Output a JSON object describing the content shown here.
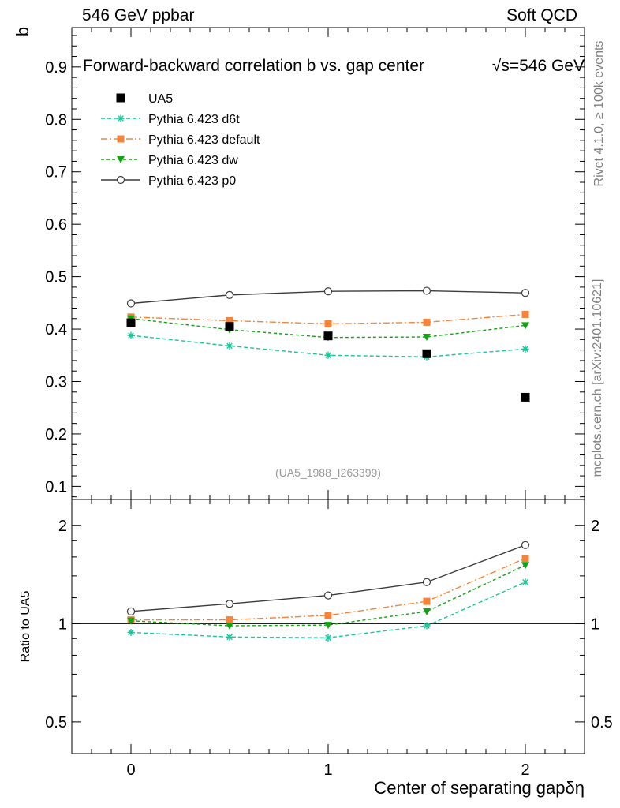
{
  "header": {
    "left": "546 GeV ppbar",
    "right": "Soft QCD"
  },
  "side_labels": {
    "rivet": "Rivet 4.1.0, ≥ 100k events",
    "mcplots": "mcplots.cern.ch [arXiv:2401.10621]"
  },
  "chart_data": {
    "type": "line",
    "title": "Forward-backward correlation b  vs. gap center",
    "energy_label": "√s=546 GeV",
    "watermark": "(UA5_1988_I263399)",
    "xlabel": "Center of separating gapδη",
    "ylabel": "b",
    "ratio_ylabel": "Ratio to UA5",
    "xlim": [
      -0.3,
      2.3
    ],
    "ylim": [
      0.075,
      0.975
    ],
    "ratio_ylim": [
      0.4,
      2.4
    ],
    "x_ticks": [
      0,
      1,
      2
    ],
    "x_tick_labels": [
      "0",
      "1",
      "2"
    ],
    "y_ticks": [
      0.1,
      0.2,
      0.3,
      0.4,
      0.5,
      0.6,
      0.7,
      0.8,
      0.9
    ],
    "y_tick_labels": [
      "0.1",
      "0.2",
      "0.3",
      "0.4",
      "0.5",
      "0.6",
      "0.7",
      "0.8",
      "0.9"
    ],
    "ratio_ticks": [
      0.5,
      1,
      2
    ],
    "ratio_tick_labels": [
      "0.5",
      "1",
      "2"
    ],
    "x": [
      0,
      0.5,
      1.0,
      1.5,
      2.0
    ],
    "data": {
      "name": "UA5",
      "color": "#000000",
      "values": [
        0.412,
        0.405,
        0.387,
        0.353,
        0.27
      ]
    },
    "series": [
      {
        "name": "Pythia 6.423 d6t",
        "color": "#17c89a",
        "marker": "star",
        "dash": "5,3",
        "values": [
          0.388,
          0.368,
          0.35,
          0.347,
          0.362
        ],
        "ratio": [
          0.94,
          0.91,
          0.905,
          0.985,
          1.34
        ]
      },
      {
        "name": "Pythia 6.423 default",
        "color": "#f5843a",
        "marker": "square",
        "dash": "8,3,2,3",
        "values": [
          0.423,
          0.416,
          0.41,
          0.413,
          0.428
        ],
        "ratio": [
          1.027,
          1.027,
          1.06,
          1.17,
          1.585
        ]
      },
      {
        "name": "Pythia 6.423 dw",
        "color": "#13a313",
        "marker": "triangle",
        "dash": "4,3",
        "values": [
          0.42,
          0.399,
          0.384,
          0.385,
          0.407
        ],
        "ratio": [
          1.02,
          0.985,
          0.99,
          1.09,
          1.51
        ]
      },
      {
        "name": "Pythia 6.423 p0",
        "color": "#3c3c3c",
        "marker": "circle",
        "dash": "",
        "values": [
          0.449,
          0.465,
          0.472,
          0.473,
          0.469
        ],
        "ratio": [
          1.09,
          1.15,
          1.22,
          1.34,
          1.74
        ]
      }
    ]
  }
}
